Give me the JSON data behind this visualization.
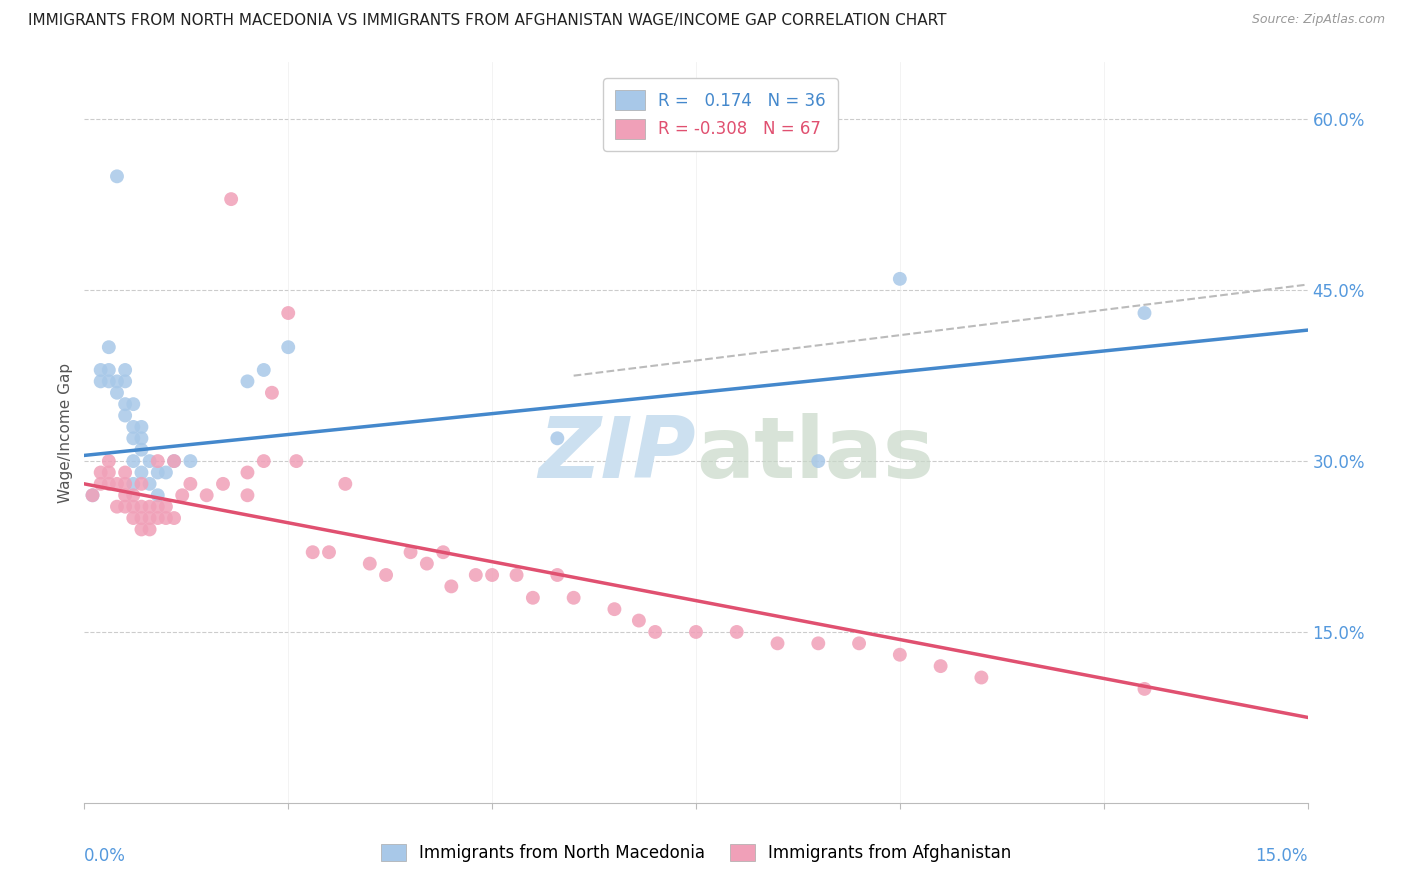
{
  "title": "IMMIGRANTS FROM NORTH MACEDONIA VS IMMIGRANTS FROM AFGHANISTAN WAGE/INCOME GAP CORRELATION CHART",
  "source": "Source: ZipAtlas.com",
  "ylabel": "Wage/Income Gap",
  "legend_blue_text": "R =   0.174   N = 36",
  "legend_pink_text": "R = -0.308   N = 67",
  "legend_label_blue": "Immigrants from North Macedonia",
  "legend_label_pink": "Immigrants from Afghanistan",
  "bg_color": "#ffffff",
  "grid_color": "#cccccc",
  "blue_scatter_color": "#a8c8e8",
  "pink_scatter_color": "#f0a0b8",
  "blue_line_color": "#4488cc",
  "pink_line_color": "#e05070",
  "dashed_line_color": "#bbbbbb",
  "watermark_color": "#cce0f0",
  "blue_points_x": [
    0.001,
    0.002,
    0.002,
    0.003,
    0.003,
    0.003,
    0.004,
    0.004,
    0.004,
    0.005,
    0.005,
    0.005,
    0.005,
    0.006,
    0.006,
    0.006,
    0.006,
    0.006,
    0.007,
    0.007,
    0.007,
    0.007,
    0.008,
    0.008,
    0.009,
    0.009,
    0.01,
    0.011,
    0.013,
    0.02,
    0.022,
    0.025,
    0.058,
    0.09,
    0.1,
    0.13
  ],
  "blue_points_y": [
    0.27,
    0.37,
    0.38,
    0.37,
    0.38,
    0.4,
    0.36,
    0.37,
    0.55,
    0.34,
    0.35,
    0.37,
    0.38,
    0.28,
    0.3,
    0.32,
    0.33,
    0.35,
    0.29,
    0.31,
    0.32,
    0.33,
    0.28,
    0.3,
    0.27,
    0.29,
    0.29,
    0.3,
    0.3,
    0.37,
    0.38,
    0.4,
    0.32,
    0.3,
    0.46,
    0.43
  ],
  "pink_points_x": [
    0.001,
    0.002,
    0.002,
    0.003,
    0.003,
    0.003,
    0.004,
    0.004,
    0.005,
    0.005,
    0.005,
    0.005,
    0.006,
    0.006,
    0.006,
    0.007,
    0.007,
    0.007,
    0.007,
    0.008,
    0.008,
    0.008,
    0.009,
    0.009,
    0.009,
    0.01,
    0.01,
    0.011,
    0.011,
    0.012,
    0.013,
    0.015,
    0.017,
    0.018,
    0.02,
    0.02,
    0.022,
    0.023,
    0.025,
    0.026,
    0.028,
    0.03,
    0.032,
    0.035,
    0.037,
    0.04,
    0.042,
    0.044,
    0.045,
    0.048,
    0.05,
    0.053,
    0.055,
    0.058,
    0.06,
    0.065,
    0.068,
    0.07,
    0.075,
    0.08,
    0.085,
    0.09,
    0.095,
    0.1,
    0.105,
    0.11,
    0.13
  ],
  "pink_points_y": [
    0.27,
    0.28,
    0.29,
    0.28,
    0.29,
    0.3,
    0.26,
    0.28,
    0.26,
    0.27,
    0.28,
    0.29,
    0.25,
    0.26,
    0.27,
    0.24,
    0.25,
    0.26,
    0.28,
    0.24,
    0.25,
    0.26,
    0.25,
    0.26,
    0.3,
    0.25,
    0.26,
    0.25,
    0.3,
    0.27,
    0.28,
    0.27,
    0.28,
    0.53,
    0.27,
    0.29,
    0.3,
    0.36,
    0.43,
    0.3,
    0.22,
    0.22,
    0.28,
    0.21,
    0.2,
    0.22,
    0.21,
    0.22,
    0.19,
    0.2,
    0.2,
    0.2,
    0.18,
    0.2,
    0.18,
    0.17,
    0.16,
    0.15,
    0.15,
    0.15,
    0.14,
    0.14,
    0.14,
    0.13,
    0.12,
    0.11,
    0.1
  ],
  "xlim": [
    0.0,
    0.15
  ],
  "ylim": [
    0.0,
    0.65
  ],
  "yticks": [
    0.15,
    0.3,
    0.45,
    0.6
  ],
  "xticks": [
    0.0,
    0.025,
    0.05,
    0.075,
    0.1,
    0.125,
    0.15
  ],
  "blue_line_x": [
    0.0,
    0.15
  ],
  "blue_line_y": [
    0.305,
    0.415
  ],
  "pink_line_x": [
    0.0,
    0.15
  ],
  "pink_line_y": [
    0.28,
    0.075
  ],
  "dash_line_x": [
    0.06,
    0.15
  ],
  "dash_line_y": [
    0.375,
    0.455
  ]
}
